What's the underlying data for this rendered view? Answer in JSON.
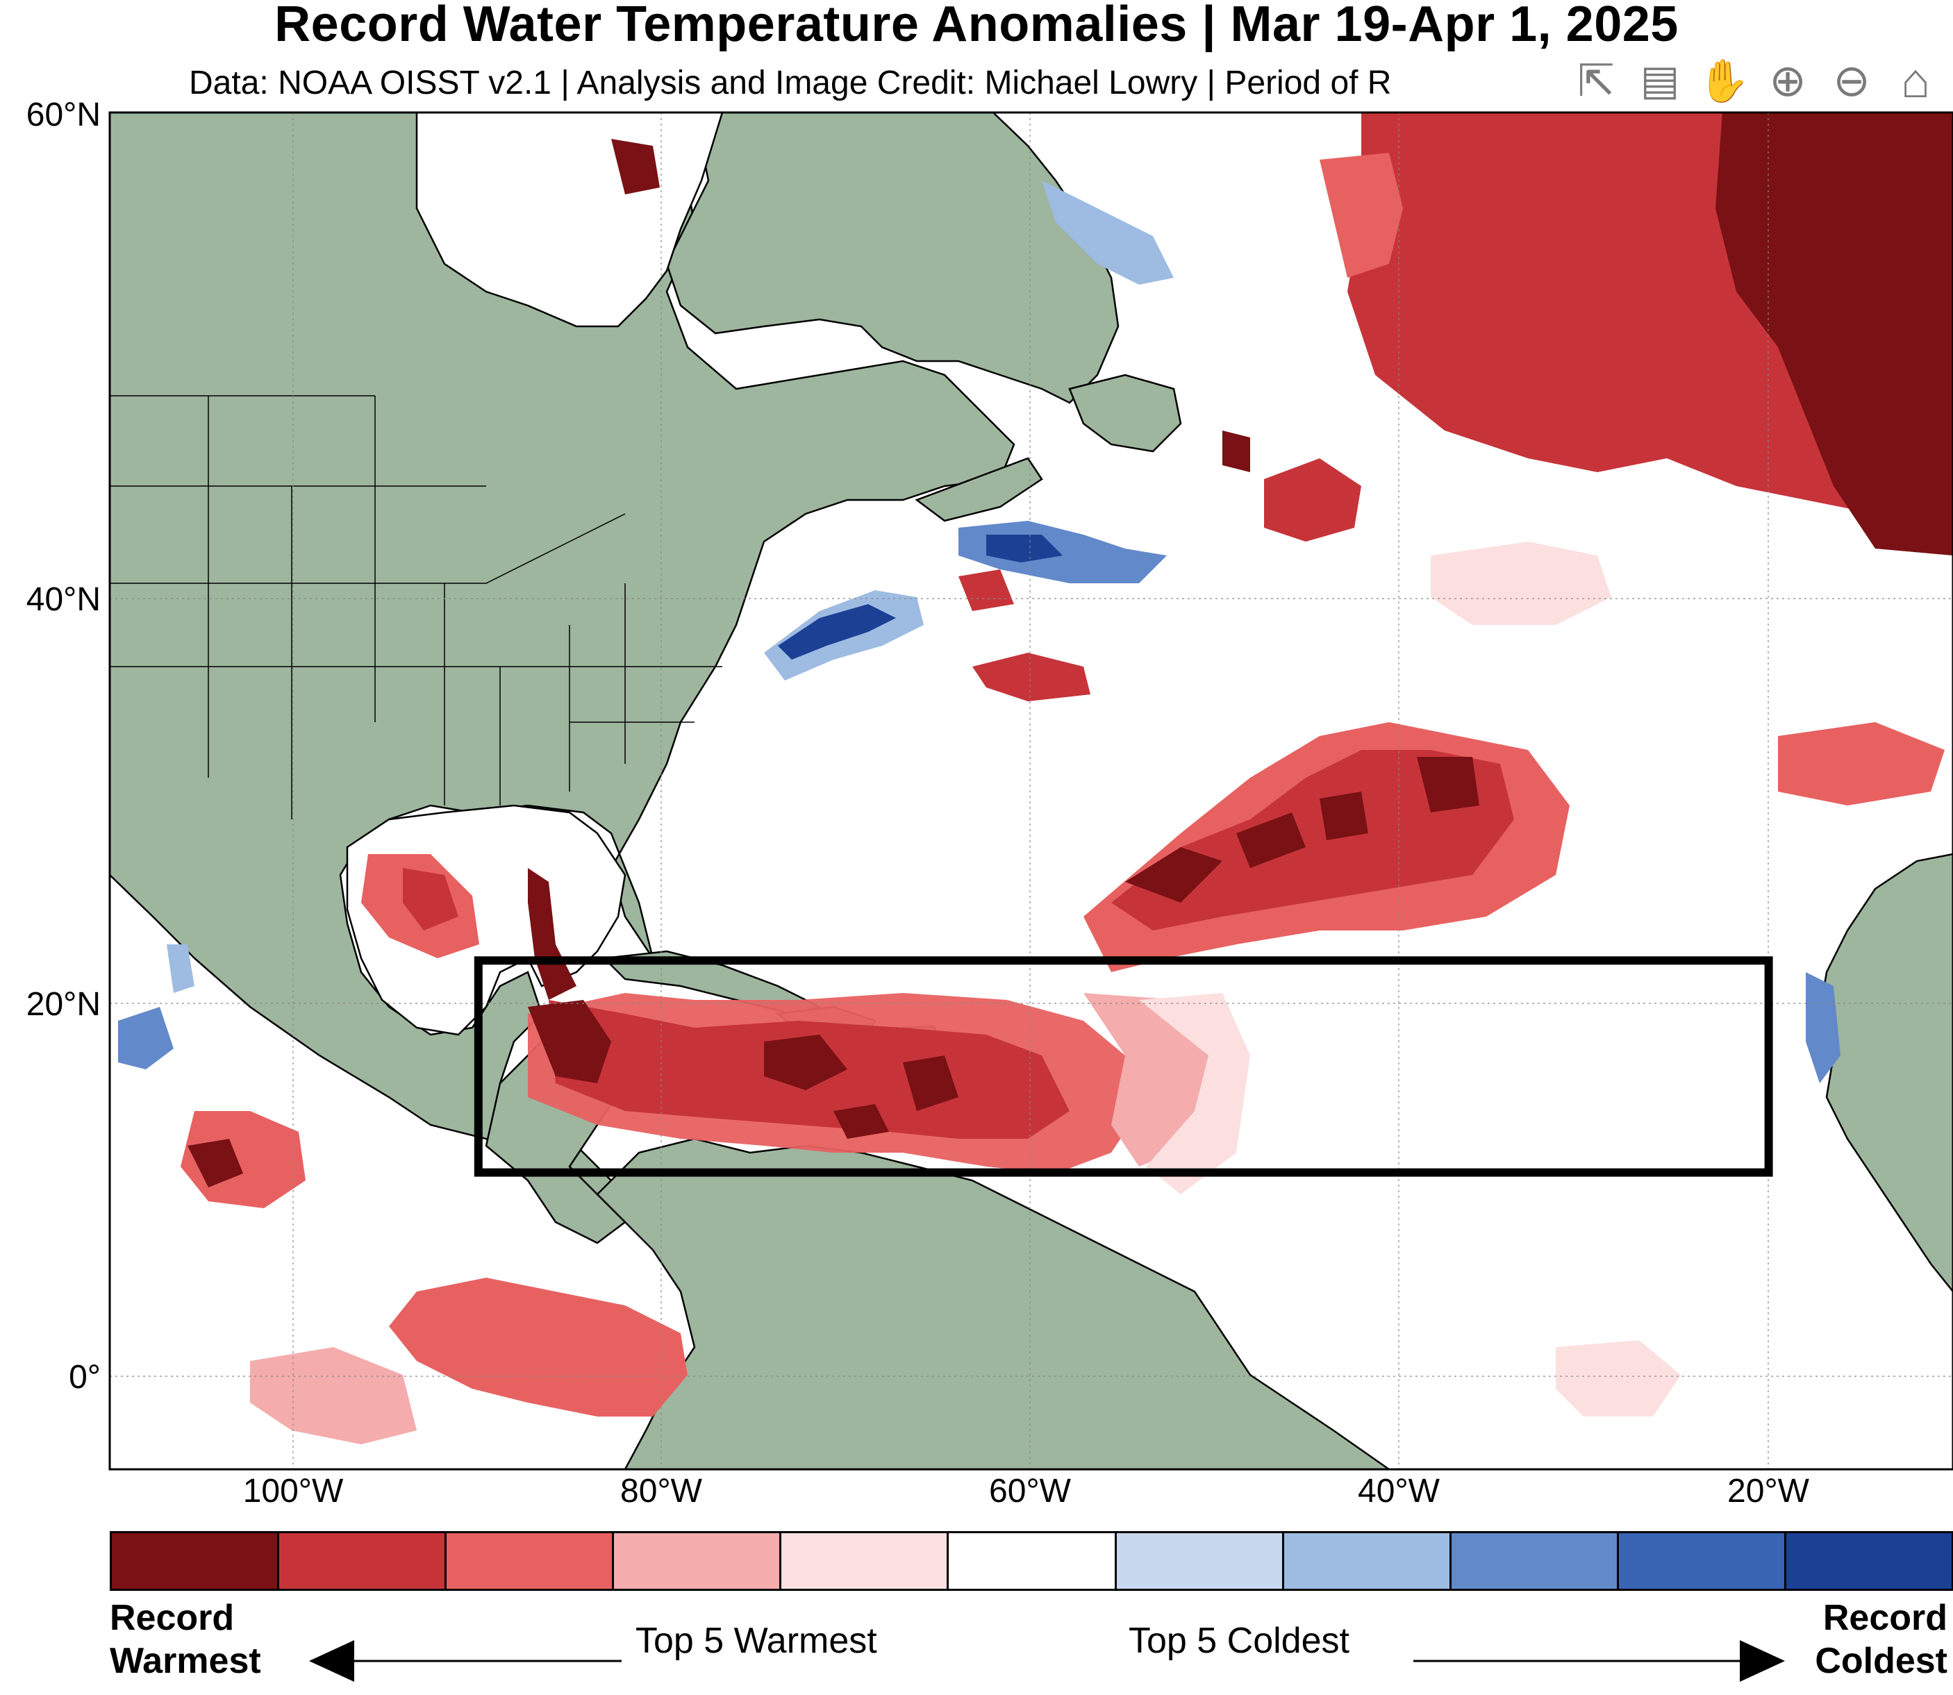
{
  "title": "Record Water Temperature Anomalies | Mar 19-Apr 1, 2025",
  "subtitle": "Data: NOAA OISST v2.1 | Analysis and Image Credit: Michael Lowry | Period of R",
  "toolbar": [
    {
      "name": "export-icon",
      "glyph": "⇱"
    },
    {
      "name": "data-tips-icon",
      "glyph": "▤"
    },
    {
      "name": "pan-hand-icon",
      "glyph": "✋"
    },
    {
      "name": "zoom-in-icon",
      "glyph": "⊕"
    },
    {
      "name": "zoom-out-icon",
      "glyph": "⊖"
    },
    {
      "name": "home-icon",
      "glyph": "⌂"
    }
  ],
  "map": {
    "lat_range": [
      -4,
      60
    ],
    "lon_range": [
      -110,
      -10
    ],
    "lat_ticks": [
      {
        "value": 60,
        "label": "60°N"
      },
      {
        "value": 40,
        "label": "40°N"
      },
      {
        "value": 20,
        "label": "20°N"
      },
      {
        "value": 0,
        "label": "0°"
      }
    ],
    "lon_ticks": [
      {
        "value": -100,
        "label": "100°W"
      },
      {
        "value": -80,
        "label": "80°W"
      },
      {
        "value": -60,
        "label": "60°W"
      },
      {
        "value": -40,
        "label": "40°W"
      },
      {
        "value": -20,
        "label": "20°W"
      }
    ],
    "highlight_box": {
      "lon": [
        -90,
        -20
      ],
      "lat": [
        10,
        20
      ]
    },
    "land_color": "#9eb59e",
    "ocean_color": "#ffffff"
  },
  "colorbar": {
    "colors": [
      "#7a1114",
      "#c6343a",
      "#e86161",
      "#f4acad",
      "#fce0e0",
      "#ffffff",
      "#c8d8ee",
      "#9ebbe2",
      "#6289ca",
      "#3a64b4",
      "#1b4094"
    ],
    "left_top": "Record",
    "left_bottom": "Warmest",
    "right_top": "Record",
    "right_bottom": "Coldest",
    "center_left": "Top 5 Warmest",
    "center_right": "Top 5 Coldest"
  }
}
